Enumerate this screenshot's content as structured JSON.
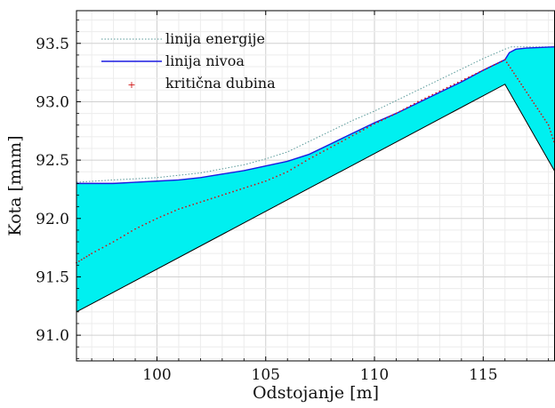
{
  "chart_data": {
    "type": "line",
    "xlabel": "Odstojanje [m]",
    "ylabel": "Kota [mnm]",
    "xlim": [
      96.3,
      118.3
    ],
    "ylim": [
      90.78,
      93.78
    ],
    "x_ticks": [
      100,
      105,
      110,
      115
    ],
    "x_tick_labels": [
      "100",
      "105",
      "110",
      "115"
    ],
    "y_ticks": [
      91.0,
      91.5,
      92.0,
      92.5,
      93.0,
      93.5
    ],
    "y_tick_labels": [
      "91.0",
      "91.5",
      "92.0",
      "92.5",
      "93.0",
      "93.5"
    ],
    "grid": true,
    "legend_position": "top-left",
    "colors": {
      "fill": "#00f0f0",
      "energy": "#5a9a9a",
      "water": "#1a1ae0",
      "critical": "#d01818",
      "bed": "#000000",
      "grid": "#d9d9d9"
    },
    "series": [
      {
        "name": "linija energije",
        "style": "dotted",
        "x": [
          96.3,
          98,
          100,
          102,
          104,
          105,
          106,
          107,
          108,
          109,
          110,
          111,
          112,
          113,
          114,
          115,
          116,
          116.3,
          117,
          118.3
        ],
        "y": [
          92.31,
          92.33,
          92.35,
          92.39,
          92.46,
          92.51,
          92.57,
          92.66,
          92.75,
          92.84,
          92.92,
          93.01,
          93.1,
          93.19,
          93.28,
          93.37,
          93.45,
          93.47,
          93.47,
          93.47
        ]
      },
      {
        "name": "linija nivoa",
        "style": "solid",
        "x": [
          96.3,
          98,
          99,
          100,
          101,
          102,
          103,
          104,
          105,
          106,
          107,
          108,
          109,
          110,
          111,
          112,
          113,
          114,
          115,
          116,
          116.2,
          116.5,
          117,
          118.3
        ],
        "y": [
          92.3,
          92.3,
          92.31,
          92.32,
          92.33,
          92.35,
          92.38,
          92.41,
          92.45,
          92.49,
          92.55,
          92.64,
          92.73,
          92.82,
          92.9,
          92.99,
          93.08,
          93.17,
          93.27,
          93.36,
          93.42,
          93.45,
          93.46,
          93.47
        ]
      },
      {
        "name": "kritična dubina",
        "style": "markers",
        "x": [
          96.3,
          97,
          98,
          99,
          100,
          101,
          102,
          103,
          104,
          105,
          106,
          107,
          108,
          109,
          110,
          111,
          112,
          113,
          114,
          115,
          116,
          116.5,
          117,
          117.5,
          118,
          118.3
        ],
        "y": [
          91.62,
          91.7,
          91.8,
          91.91,
          92.0,
          92.08,
          92.14,
          92.2,
          92.26,
          92.32,
          92.4,
          92.51,
          92.61,
          92.71,
          92.81,
          92.9,
          93.0,
          93.09,
          93.18,
          93.27,
          93.36,
          93.22,
          93.08,
          92.94,
          92.8,
          92.63
        ]
      },
      {
        "name": "bed",
        "style": "solid",
        "x": [
          96.3,
          116.0,
          118.3
        ],
        "y": [
          91.2,
          93.15,
          92.4
        ]
      }
    ]
  }
}
